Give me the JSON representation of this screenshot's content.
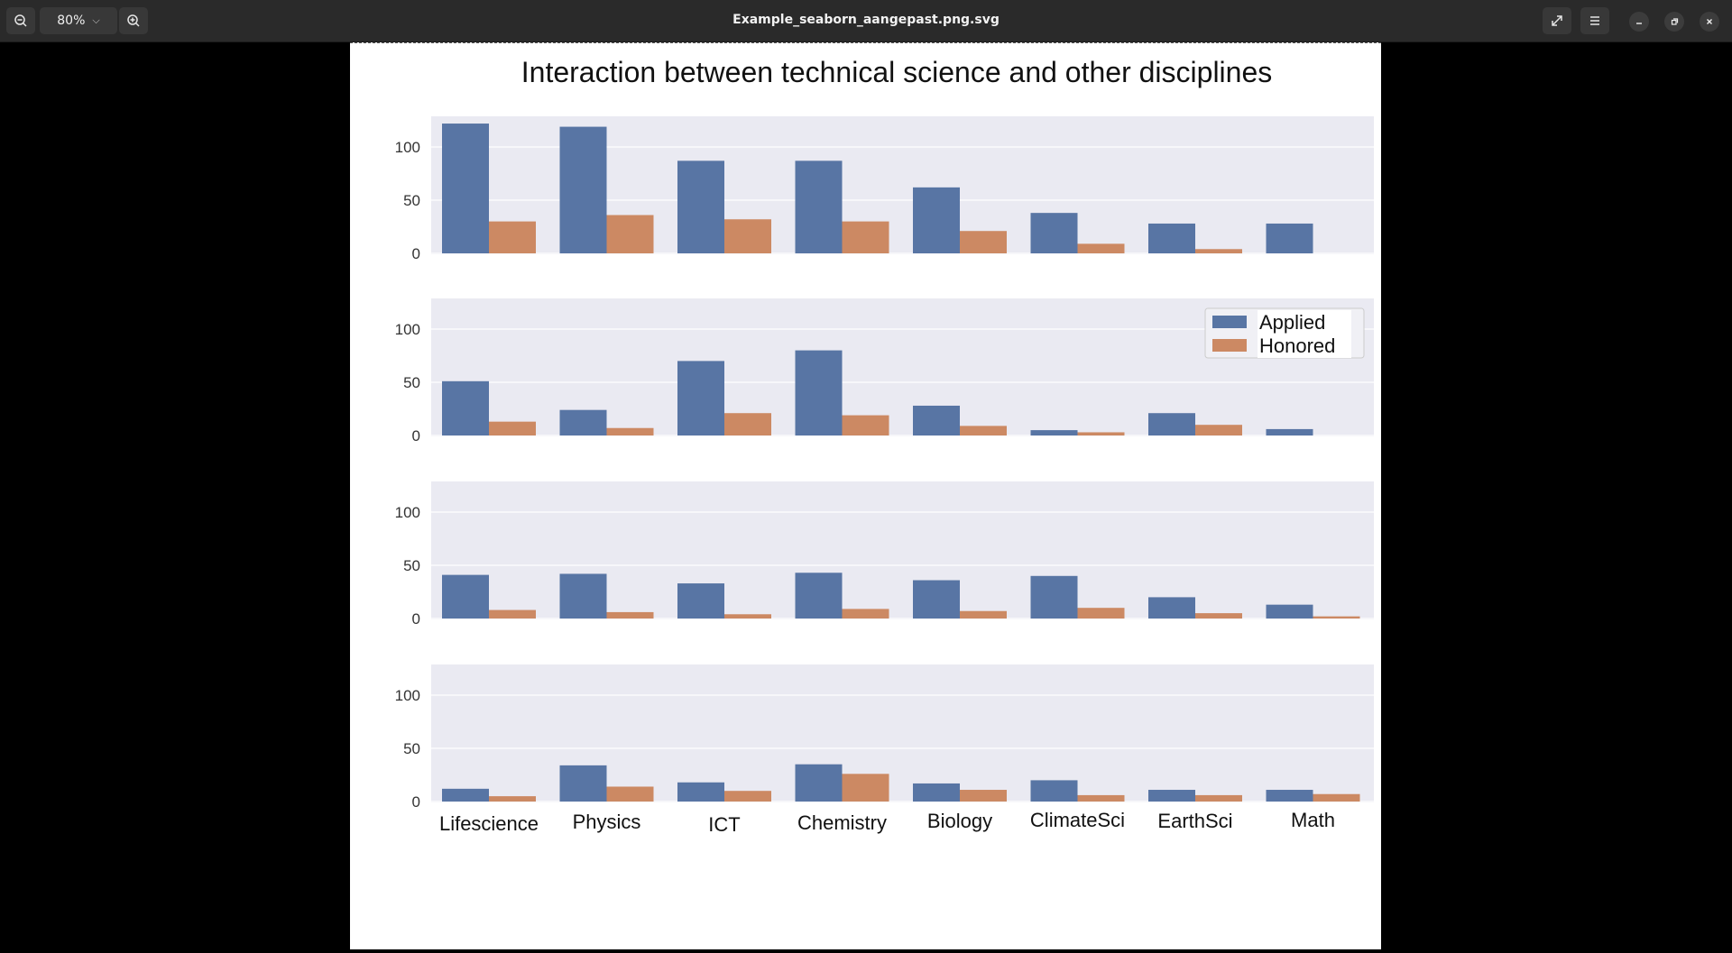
{
  "viewer": {
    "filename": "Example_seaborn_aangepast.png.svg",
    "zoom_label": "80%"
  },
  "chart_data": {
    "type": "bar",
    "title": "Interaction between technical science and other disciplines",
    "categories": [
      "Lifescience",
      "Physics",
      "ICT",
      "Chemistry",
      "Biology",
      "ClimateSci",
      "EarthSci",
      "Math"
    ],
    "legend": [
      "Applied",
      "Honored"
    ],
    "legend_placement": "top-right of second panel",
    "colors": {
      "Applied": "#5875a4",
      "Honored": "#cc8963"
    },
    "ylim": [
      0,
      130
    ],
    "yticks": [
      0,
      50,
      100
    ],
    "grid": true,
    "panels": [
      {
        "series": [
          {
            "name": "Applied",
            "values": [
              122,
              119,
              87,
              87,
              62,
              38,
              28,
              28
            ]
          },
          {
            "name": "Honored",
            "values": [
              30,
              36,
              32,
              30,
              21,
              9,
              4,
              0
            ]
          }
        ]
      },
      {
        "series": [
          {
            "name": "Applied",
            "values": [
              51,
              24,
              70,
              80,
              28,
              5,
              21,
              6
            ]
          },
          {
            "name": "Honored",
            "values": [
              13,
              7,
              21,
              19,
              9,
              3,
              10,
              0
            ]
          }
        ]
      },
      {
        "series": [
          {
            "name": "Applied",
            "values": [
              41,
              42,
              33,
              43,
              36,
              40,
              20,
              13
            ]
          },
          {
            "name": "Honored",
            "values": [
              8,
              6,
              4,
              9,
              7,
              10,
              5,
              2
            ]
          }
        ]
      },
      {
        "series": [
          {
            "name": "Applied",
            "values": [
              12,
              34,
              18,
              35,
              17,
              20,
              11,
              11
            ]
          },
          {
            "name": "Honored",
            "values": [
              5,
              14,
              10,
              26,
              11,
              6,
              6,
              7
            ]
          }
        ]
      }
    ]
  }
}
